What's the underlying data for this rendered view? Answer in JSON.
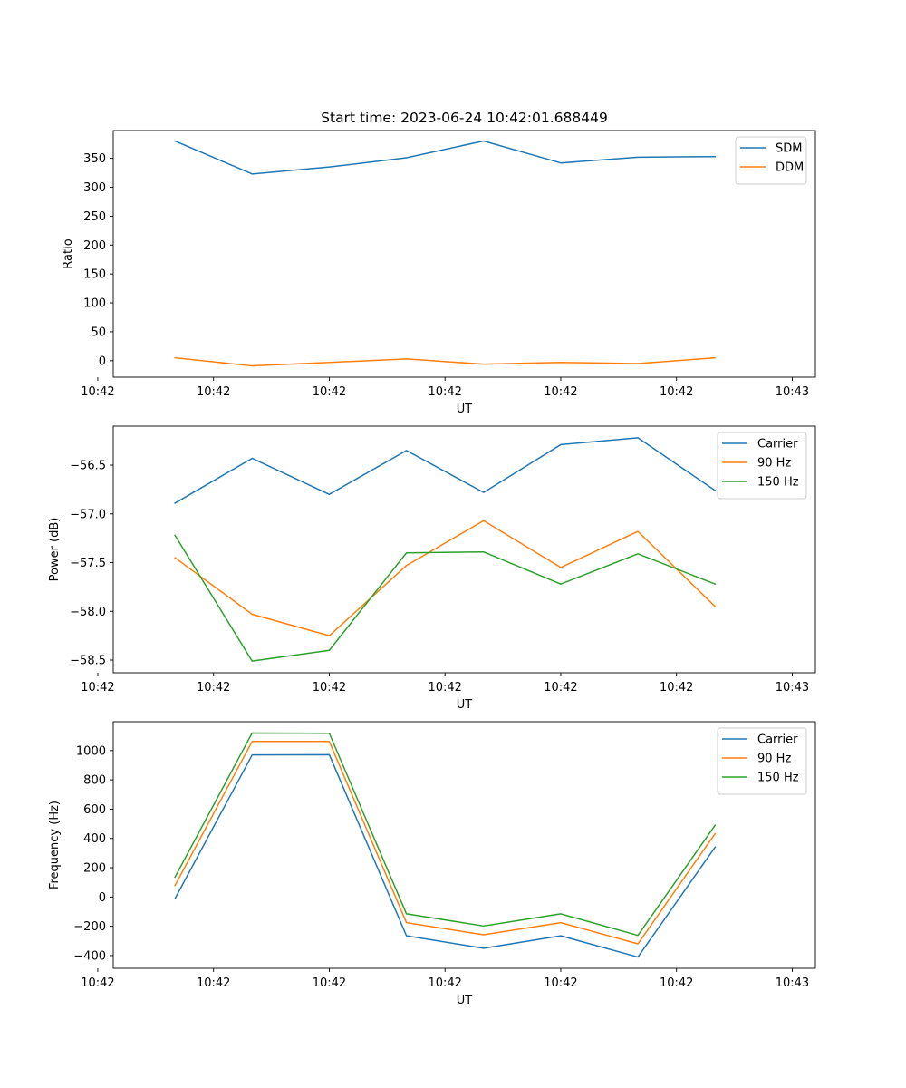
{
  "figure": {
    "title": "Start time: 2023-06-24 10:42:01.688449"
  },
  "colors": {
    "blue": "#1f77b4",
    "orange": "#ff7f0e",
    "green": "#2ca02c"
  },
  "chart_data": [
    {
      "type": "line",
      "title": "Start time: 2023-06-24 10:42:01.688449",
      "xlabel": "UT",
      "ylabel": "Ratio",
      "x": [
        1,
        2,
        3,
        4,
        5,
        6,
        7,
        8
      ],
      "xlim": [
        0.2,
        9.3
      ],
      "xticks": [
        0,
        1.5,
        3,
        4.5,
        6,
        7.5,
        9
      ],
      "xtick_labels": [
        "10:42",
        "10:42",
        "10:42",
        "10:42",
        "10:42",
        "10:42",
        "10:43"
      ],
      "ylim": [
        -28.5,
        398
      ],
      "yticks": [
        0,
        50,
        100,
        150,
        200,
        250,
        300,
        350
      ],
      "ytick_labels": [
        "0",
        "50",
        "100",
        "150",
        "200",
        "250",
        "300",
        "350"
      ],
      "grid": false,
      "legend": "top-right",
      "series": [
        {
          "name": "SDM",
          "color": "#1f77b4",
          "values": [
            380,
            323,
            335,
            351,
            380,
            342,
            352,
            353
          ]
        },
        {
          "name": "DDM",
          "color": "#ff7f0e",
          "values": [
            5,
            -9,
            -3,
            3,
            -6,
            -3,
            -5,
            5
          ]
        }
      ]
    },
    {
      "type": "line",
      "title": "",
      "xlabel": "UT",
      "ylabel": "Power (dB)",
      "x": [
        1,
        2,
        3,
        4,
        5,
        6,
        7,
        8
      ],
      "xlim": [
        0.2,
        9.3
      ],
      "xticks": [
        0,
        1.5,
        3,
        4.5,
        6,
        7.5,
        9
      ],
      "xtick_labels": [
        "10:42",
        "10:42",
        "10:42",
        "10:42",
        "10:42",
        "10:42",
        "10:43"
      ],
      "ylim": [
        -58.63,
        -56.1
      ],
      "yticks": [
        -58.5,
        -58.0,
        -57.5,
        -57.0,
        -56.5
      ],
      "ytick_labels": [
        "−58.5",
        "−58.0",
        "−57.5",
        "−57.0",
        "−56.5"
      ],
      "grid": false,
      "legend": "top-right",
      "series": [
        {
          "name": "Carrier",
          "color": "#1f77b4",
          "values": [
            -56.89,
            -56.43,
            -56.8,
            -56.35,
            -56.78,
            -56.29,
            -56.22,
            -56.76
          ]
        },
        {
          "name": "90 Hz",
          "color": "#ff7f0e",
          "values": [
            -57.45,
            -58.03,
            -58.25,
            -57.53,
            -57.07,
            -57.55,
            -57.18,
            -57.95
          ]
        },
        {
          "name": "150 Hz",
          "color": "#2ca02c",
          "values": [
            -57.22,
            -58.51,
            -58.4,
            -57.4,
            -57.39,
            -57.72,
            -57.41,
            -57.72
          ]
        }
      ]
    },
    {
      "type": "line",
      "title": "",
      "xlabel": "UT",
      "ylabel": "Frequency (Hz)",
      "x": [
        1,
        2,
        3,
        4,
        5,
        6,
        7,
        8
      ],
      "xlim": [
        0.2,
        9.3
      ],
      "xticks": [
        0,
        1.5,
        3,
        4.5,
        6,
        7.5,
        9
      ],
      "xtick_labels": [
        "10:42",
        "10:42",
        "10:42",
        "10:42",
        "10:42",
        "10:42",
        "10:43"
      ],
      "ylim": [
        -487,
        1197
      ],
      "yticks": [
        -400,
        -200,
        0,
        200,
        400,
        600,
        800,
        1000
      ],
      "ytick_labels": [
        "−400",
        "−200",
        "0",
        "200",
        "400",
        "600",
        "800",
        "1000"
      ],
      "grid": false,
      "legend": "top-right",
      "series": [
        {
          "name": "Carrier",
          "color": "#1f77b4",
          "values": [
            -12,
            970,
            972,
            -265,
            -350,
            -265,
            -410,
            340
          ]
        },
        {
          "name": "90 Hz",
          "color": "#ff7f0e",
          "values": [
            78,
            1062,
            1062,
            -175,
            -258,
            -175,
            -320,
            432
          ]
        },
        {
          "name": "150 Hz",
          "color": "#2ca02c",
          "values": [
            135,
            1120,
            1118,
            -115,
            -198,
            -115,
            -262,
            490
          ]
        }
      ]
    }
  ]
}
